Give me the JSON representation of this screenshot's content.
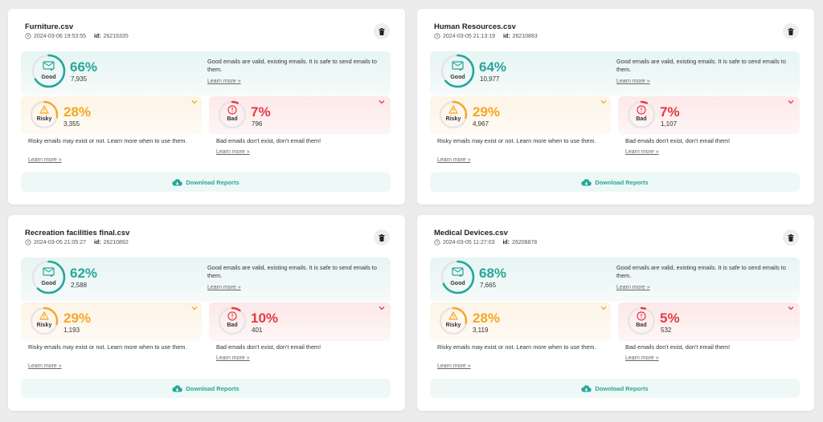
{
  "colors": {
    "good": "#26a69a",
    "risky": "#f5a623",
    "bad": "#e53945",
    "track": "#e5e5e5"
  },
  "icons": {
    "clock": "clock-icon",
    "trash": "trash-icon",
    "good": "mail-check-icon",
    "risky": "warning-triangle-icon",
    "bad": "alert-circle-icon",
    "chevron": "chevron-down-icon",
    "download": "cloud-download-icon"
  },
  "labels": {
    "good": "Good",
    "risky": "Risky",
    "bad": "Bad",
    "good_desc": "Good emails are valid, existing emails. It is safe to send emails to them.",
    "risky_desc": "Risky emails may exist or not. Learn more when to use them.",
    "bad_desc": "Bad emails don't exist, don't email them!",
    "learn_more": "Learn more »",
    "download": "Download Reports",
    "id_label": "id:"
  },
  "reports": [
    {
      "name": "Furniture.csv",
      "date": "2024-03-06 19:53:55",
      "id": "26215335",
      "good": {
        "pct_text": "66%",
        "count": "7,935",
        "fraction": 0.66
      },
      "risky": {
        "pct_text": "28%",
        "count": "3,355",
        "fraction": 0.28
      },
      "bad": {
        "pct_text": "7%",
        "count": "796",
        "fraction": 0.07
      }
    },
    {
      "name": "Human Resources.csv",
      "date": "2024-03-05 21:13:19",
      "id": "26210893",
      "good": {
        "pct_text": "64%",
        "count": "10,977",
        "fraction": 0.64
      },
      "risky": {
        "pct_text": "29%",
        "count": "4,967",
        "fraction": 0.29
      },
      "bad": {
        "pct_text": "7%",
        "count": "1,107",
        "fraction": 0.07
      }
    },
    {
      "name": "Recreation facilities final.csv",
      "date": "2024-03-05 21:05:27",
      "id": "26210892",
      "good": {
        "pct_text": "62%",
        "count": "2,588",
        "fraction": 0.62
      },
      "risky": {
        "pct_text": "29%",
        "count": "1,193",
        "fraction": 0.29
      },
      "bad": {
        "pct_text": "10%",
        "count": "401",
        "fraction": 0.1
      }
    },
    {
      "name": "Medical Devices.csv",
      "date": "2024-03-05 11:27:03",
      "id": "26208878",
      "good": {
        "pct_text": "68%",
        "count": "7,665",
        "fraction": 0.68
      },
      "risky": {
        "pct_text": "28%",
        "count": "3,119",
        "fraction": 0.28
      },
      "bad": {
        "pct_text": "5%",
        "count": "532",
        "fraction": 0.05
      }
    }
  ]
}
